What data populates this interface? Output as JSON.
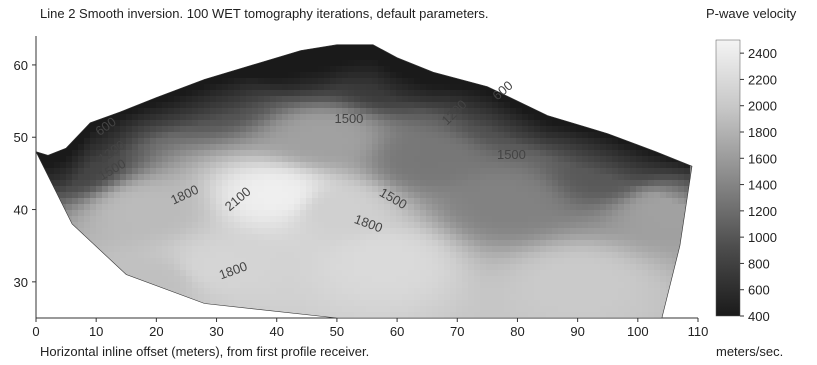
{
  "chart_data": {
    "type": "heatmap",
    "title": "Line 2 Smooth inversion. 100 WET tomography iterations, default parameters.",
    "xlabel": "Horizontal inline offset (meters), from first profile receiver.",
    "ylabel": "",
    "xlim": [
      0,
      110
    ],
    "ylim": [
      25,
      64
    ],
    "x_ticks": [
      "0",
      "10",
      "20",
      "30",
      "40",
      "50",
      "60",
      "70",
      "80",
      "90",
      "100",
      "110"
    ],
    "y_ticks": [
      "60",
      "50",
      "40",
      "30"
    ],
    "colorbar": {
      "title": "P-wave velocity",
      "units": "meters/sec.",
      "range": [
        400,
        2500
      ],
      "ticks": [
        "2400",
        "2200",
        "2000",
        "1800",
        "1600",
        "1400",
        "1200",
        "1000",
        "800",
        "600",
        "400"
      ]
    },
    "contour_labels": [
      {
        "text": "600",
        "x": 12,
        "y": 51
      },
      {
        "text": "1200",
        "x": 13,
        "y": 47.5
      },
      {
        "text": "1500",
        "x": 13,
        "y": 45
      },
      {
        "text": "1800",
        "x": 25,
        "y": 41.5
      },
      {
        "text": "2100",
        "x": 34,
        "y": 41
      },
      {
        "text": "1500",
        "x": 52,
        "y": 52
      },
      {
        "text": "1200",
        "x": 70,
        "y": 53
      },
      {
        "text": "600",
        "x": 78,
        "y": 56
      },
      {
        "text": "1500",
        "x": 79,
        "y": 47
      },
      {
        "text": "1500",
        "x": 59,
        "y": 41
      },
      {
        "text": "1800",
        "x": 55,
        "y": 37.5
      },
      {
        "text": "1800",
        "x": 33,
        "y": 31
      }
    ],
    "velocity_anchors": [
      {
        "x": 40,
        "y": 42,
        "v": 2450
      },
      {
        "x": 50,
        "y": 40,
        "v": 2150
      },
      {
        "x": 58,
        "y": 33,
        "v": 2250
      },
      {
        "x": 90,
        "y": 30,
        "v": 2100
      },
      {
        "x": 30,
        "y": 32,
        "v": 2200
      },
      {
        "x": 18,
        "y": 40,
        "v": 1950
      },
      {
        "x": 65,
        "y": 47,
        "v": 1300
      },
      {
        "x": 78,
        "y": 41,
        "v": 1400
      },
      {
        "x": 58,
        "y": 58,
        "v": 700
      },
      {
        "x": 78,
        "y": 53,
        "v": 900
      },
      {
        "x": 95,
        "y": 45,
        "v": 1000
      },
      {
        "x": 6,
        "y": 46,
        "v": 800
      },
      {
        "x": 30,
        "y": 56,
        "v": 900
      },
      {
        "x": 44,
        "y": 60,
        "v": 600
      },
      {
        "x": 105,
        "y": 40,
        "v": 1700
      },
      {
        "x": 48,
        "y": 50,
        "v": 1700
      },
      {
        "x": 20,
        "y": 30,
        "v": 2000
      }
    ],
    "surface": [
      [
        0,
        48
      ],
      [
        2,
        47.5
      ],
      [
        5,
        48.5
      ],
      [
        9,
        52
      ],
      [
        14,
        53.5
      ],
      [
        20,
        55.5
      ],
      [
        28,
        58
      ],
      [
        36,
        60
      ],
      [
        44,
        62
      ],
      [
        50,
        62.8
      ],
      [
        56,
        62.8
      ],
      [
        60,
        61
      ],
      [
        66,
        59
      ],
      [
        75,
        57
      ],
      [
        85,
        53
      ],
      [
        95,
        50.5
      ],
      [
        103,
        48
      ],
      [
        109,
        46
      ]
    ],
    "bottom": [
      [
        109,
        46
      ],
      [
        107,
        35
      ],
      [
        104,
        25
      ],
      [
        62,
        25
      ],
      [
        50,
        25
      ],
      [
        28,
        27
      ],
      [
        15,
        31
      ],
      [
        6,
        38
      ],
      [
        0,
        48
      ]
    ]
  }
}
